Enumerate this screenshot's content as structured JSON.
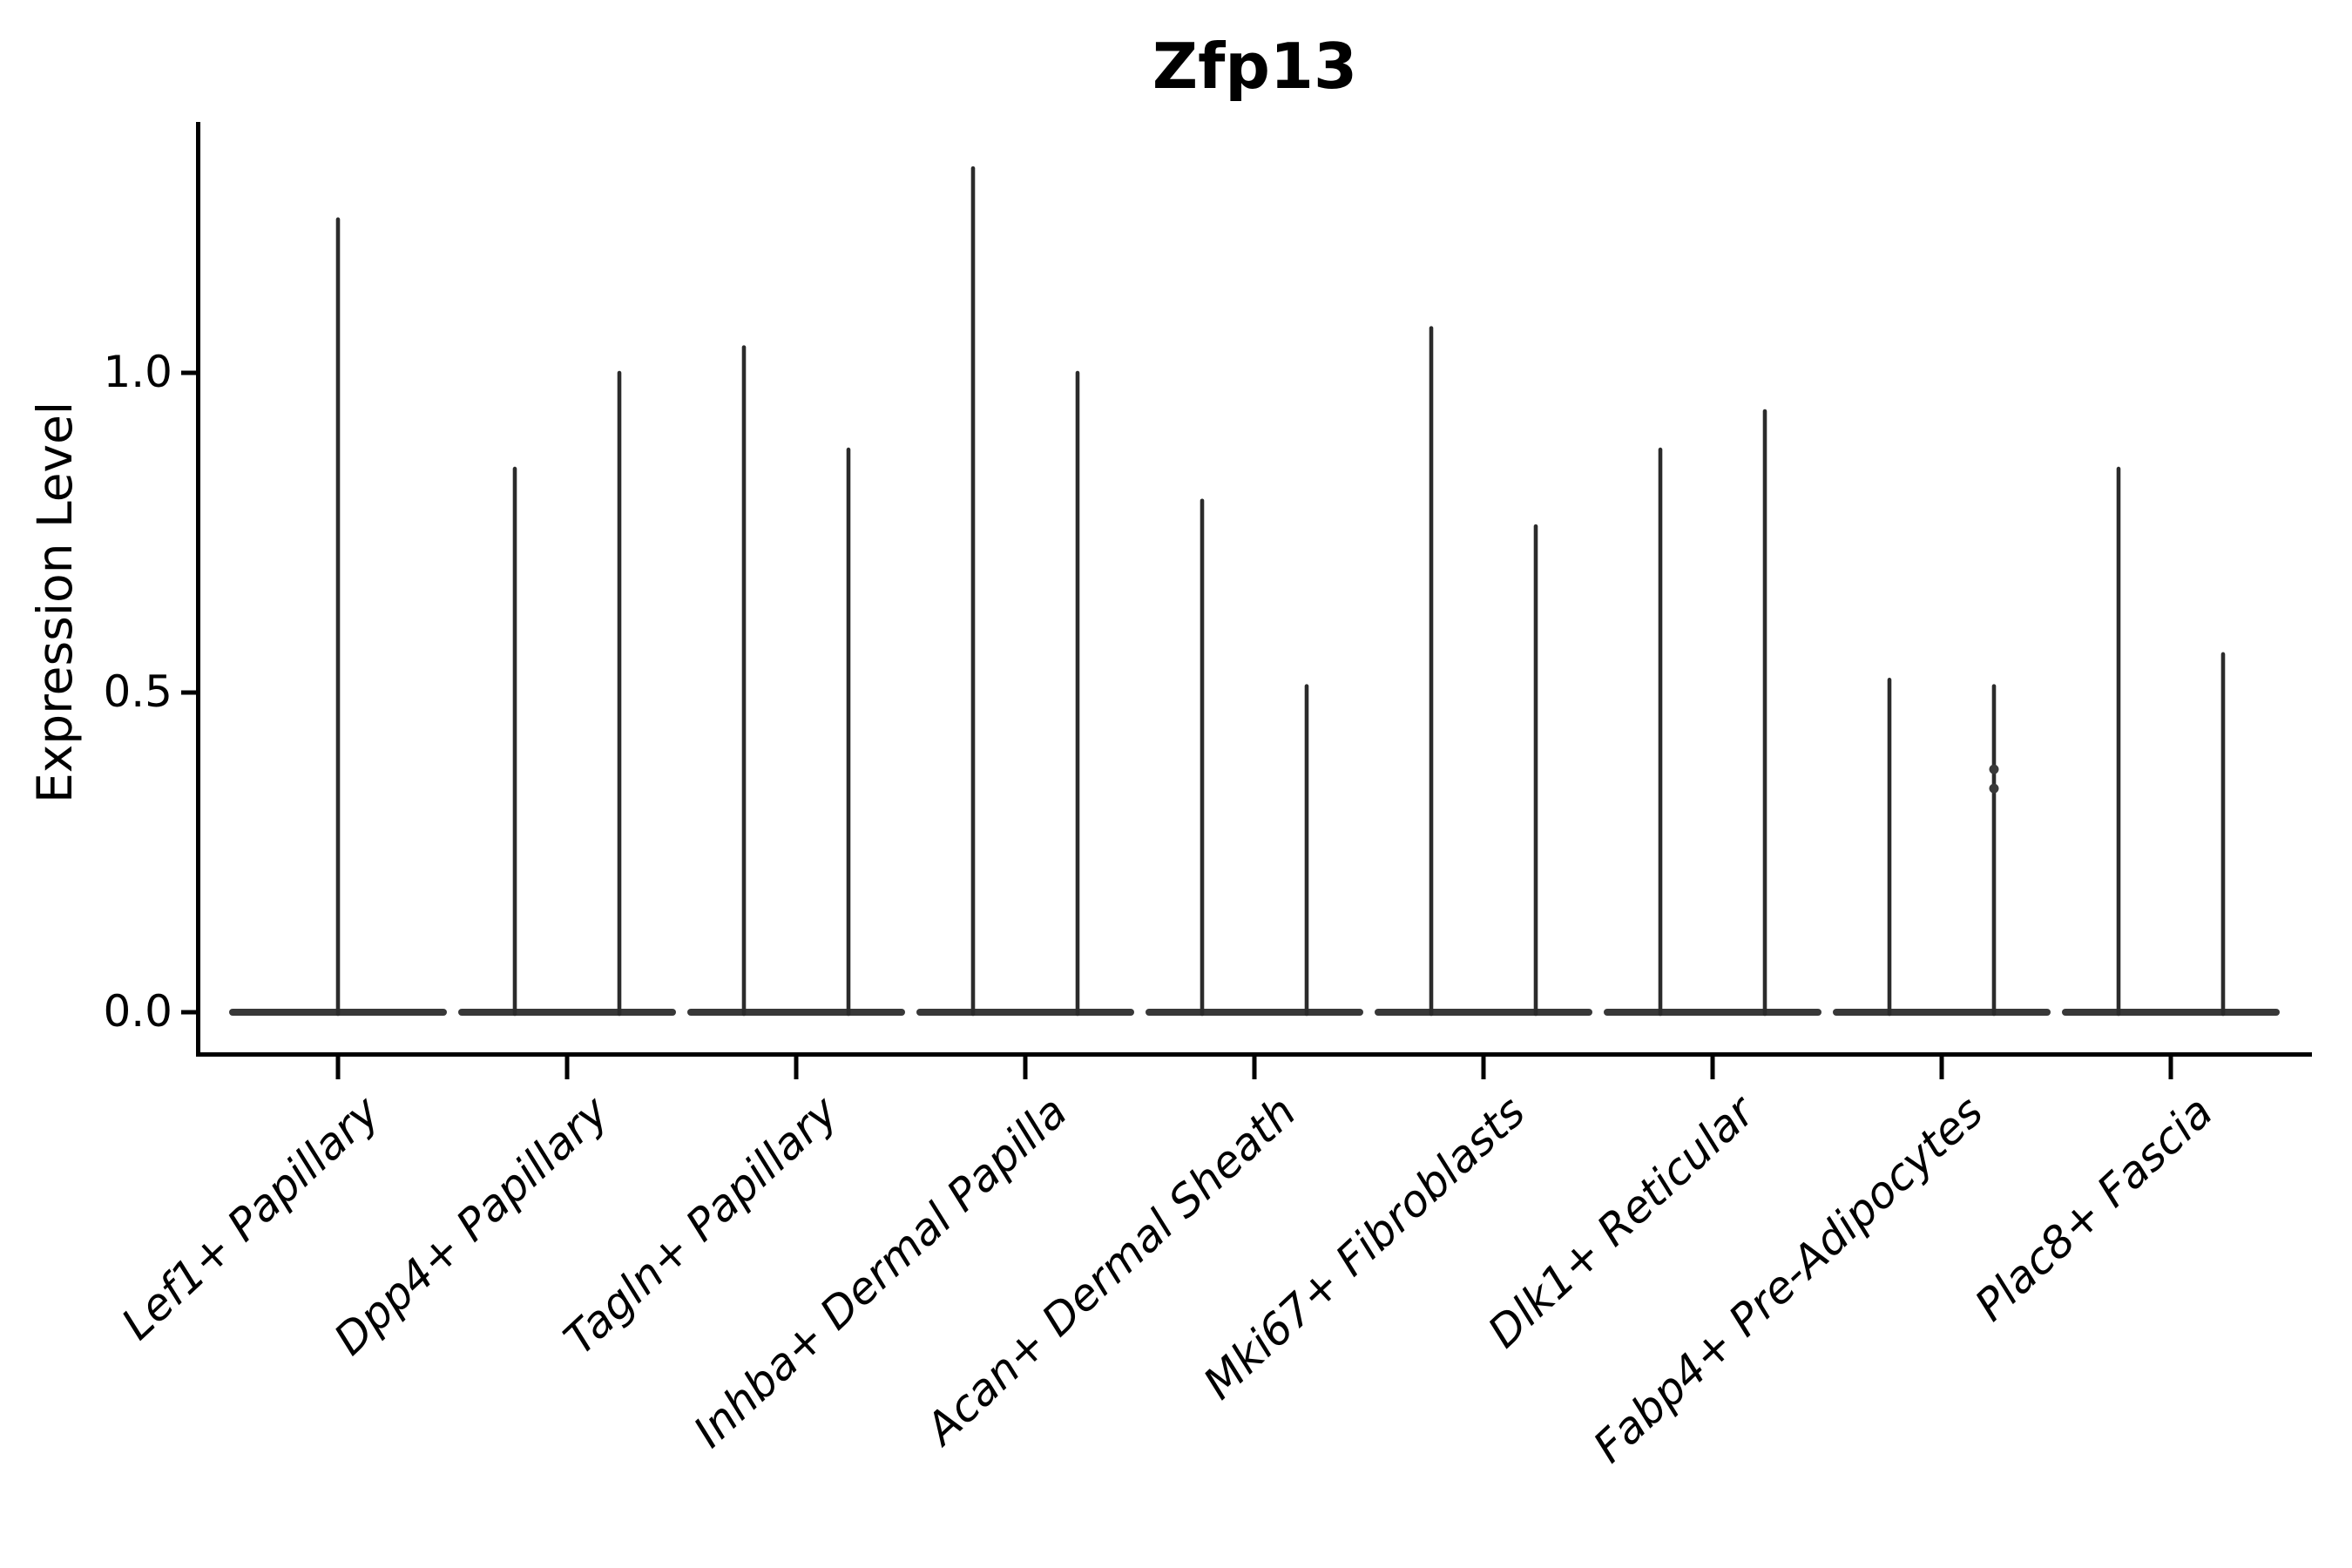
{
  "figure": {
    "background": "#ffffff",
    "text_color": "#000000"
  },
  "colors": {
    "axis": "#000000",
    "violin_line": "#2b2b2b",
    "violin_base": "#383838",
    "point": "#3a3a3a"
  },
  "chart_data": {
    "type": "violin",
    "title": "Zfp13",
    "xlabel": "",
    "ylabel": "Expression Level",
    "ylim": [
      0.0,
      1.39
    ],
    "yticks": [
      0.0,
      0.5,
      1.0
    ],
    "ytick_labels": [
      "0.0",
      "0.5",
      "1.0"
    ],
    "grid": "off",
    "legend": "none",
    "categories": [
      "Lef1+ Papillary",
      "Dpp4+ Papillary",
      "Tagln+ Papillary",
      "Inhba+ Dermal Papilla",
      "Acan+ Dermal Sheath",
      "Mki67+ Fibroblasts",
      "Dlk1+ Reticular",
      "Fabp4+ Pre-Adipocytes",
      "Plac8+ Fascia"
    ],
    "violin_style": "thin spikes rising from a flat dense base at expression 0; most cells have zero expression",
    "baseline_value": 0.0,
    "series": [
      {
        "category": "Lef1+ Papillary",
        "peaks": [
          1.24
        ]
      },
      {
        "category": "Dpp4+ Papillary",
        "peaks": [
          0.85,
          1.0
        ]
      },
      {
        "category": "Tagln+ Papillary",
        "peaks": [
          1.04,
          0.88
        ]
      },
      {
        "category": "Inhba+ Dermal Papilla",
        "peaks": [
          1.32,
          1.0
        ]
      },
      {
        "category": "Acan+ Dermal Sheath",
        "peaks": [
          0.8,
          0.51
        ]
      },
      {
        "category": "Mki67+ Fibroblasts",
        "peaks": [
          1.07,
          0.76
        ]
      },
      {
        "category": "Dlk1+ Reticular",
        "peaks": [
          0.88,
          0.94
        ]
      },
      {
        "category": "Fabp4+ Pre-Adipocytes",
        "peaks": [
          0.52,
          0.51
        ]
      },
      {
        "category": "Plac8+ Fascia",
        "peaks": [
          0.85,
          0.56
        ]
      }
    ],
    "extra_points": [
      {
        "category": "Fabp4+ Pre-Adipocytes",
        "category_index": 7,
        "side": "right",
        "values": [
          0.38,
          0.35
        ]
      }
    ]
  }
}
